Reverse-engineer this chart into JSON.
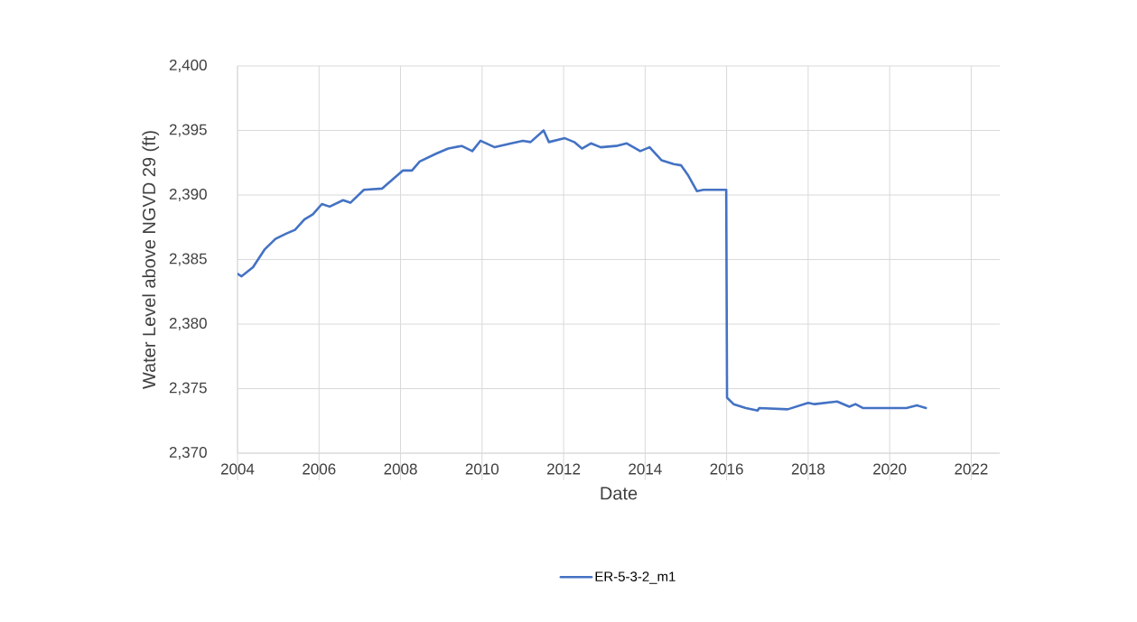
{
  "chart_data": {
    "type": "line",
    "xlabel": "Date",
    "ylabel": "Water Level above NGVD 29 (ft)",
    "xlim": [
      2004,
      2022.7
    ],
    "xticks": [
      2004,
      2006,
      2008,
      2010,
      2012,
      2014,
      2016,
      2018,
      2020,
      2022
    ],
    "ylim": [
      2370,
      2400
    ],
    "yticks": [
      {
        "value": 2370,
        "label": "2,370"
      },
      {
        "value": 2375,
        "label": "2,375"
      },
      {
        "value": 2380,
        "label": "2,380"
      },
      {
        "value": 2385,
        "label": "2,385"
      },
      {
        "value": 2390,
        "label": "2,390"
      },
      {
        "value": 2395,
        "label": "2,395"
      },
      {
        "value": 2400,
        "label": "2,400"
      }
    ],
    "grid": true,
    "legend": "bottom",
    "series": [
      {
        "name": "ER-5-3-2_m1",
        "color": "#4472c4",
        "x": [
          2004.0,
          2004.1,
          2004.38,
          2004.67,
          2004.93,
          2005.19,
          2005.41,
          2005.64,
          2005.85,
          2006.07,
          2006.26,
          2006.59,
          2006.77,
          2007.1,
          2007.55,
          2008.06,
          2008.28,
          2008.47,
          2008.87,
          2009.17,
          2009.5,
          2009.76,
          2009.96,
          2010.31,
          2010.72,
          2011.0,
          2011.19,
          2011.51,
          2011.64,
          2012.03,
          2012.26,
          2012.45,
          2012.67,
          2012.91,
          2013.29,
          2013.55,
          2013.88,
          2014.11,
          2014.4,
          2014.7,
          2014.88,
          2015.06,
          2015.27,
          2015.43,
          2015.99,
          2016.01,
          2016.17,
          2016.47,
          2016.76,
          2016.8,
          2017.5,
          2018.0,
          2018.16,
          2018.71,
          2019.01,
          2019.16,
          2019.34,
          2020.08,
          2020.41,
          2020.67,
          2020.89
        ],
        "values": [
          2383.9,
          2383.7,
          2384.4,
          2385.8,
          2386.6,
          2387.0,
          2387.3,
          2388.1,
          2388.5,
          2389.3,
          2389.1,
          2389.6,
          2389.4,
          2390.4,
          2390.5,
          2391.9,
          2391.9,
          2392.6,
          2393.2,
          2393.6,
          2393.8,
          2393.4,
          2394.2,
          2393.7,
          2394.0,
          2394.2,
          2394.1,
          2395.0,
          2394.1,
          2394.4,
          2394.1,
          2393.6,
          2394.0,
          2393.7,
          2393.8,
          2394.0,
          2393.4,
          2393.7,
          2392.7,
          2392.4,
          2392.3,
          2391.5,
          2390.3,
          2390.4,
          2390.4,
          2374.3,
          2373.8,
          2373.5,
          2373.3,
          2373.5,
          2373.4,
          2373.9,
          2373.8,
          2374.0,
          2373.6,
          2373.8,
          2373.5,
          2373.5,
          2373.5,
          2373.7,
          2373.5
        ]
      }
    ]
  }
}
